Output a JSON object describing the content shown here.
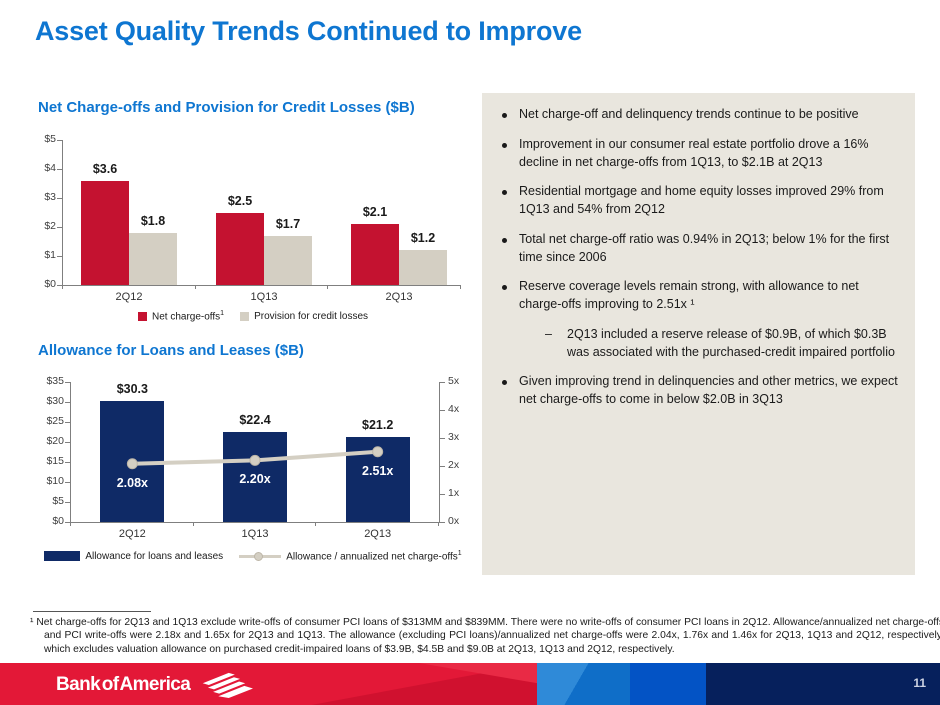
{
  "slide": {
    "title": "Asset Quality Trends Continued to Improve",
    "page_number": "11",
    "logo_text": "Bank of America"
  },
  "colors": {
    "accent_blue": "#0e76d1",
    "bar_red": "#c41230",
    "bar_tan": "#d4cfc3",
    "bar_navy": "#0f2a66",
    "line_tan": "#d4cfc3",
    "panel_beige": "#e9e6de",
    "footer_red": "#e31837",
    "footer_blue_mid": "#1478d2",
    "footer_blue_bright": "#0353c5",
    "footer_navy": "#06205c"
  },
  "chart_data": [
    {
      "type": "bar",
      "title": "Net Charge-offs and Provision for Credit Losses ($B)",
      "categories": [
        "2Q12",
        "1Q13",
        "2Q13"
      ],
      "series": [
        {
          "name": "Net charge-offs",
          "legend_sup": "1",
          "color": "#c41230",
          "values": [
            3.6,
            2.5,
            2.1
          ],
          "labels": [
            "$3.6",
            "$2.5",
            "$2.1"
          ]
        },
        {
          "name": "Provision for credit losses",
          "legend_sup": "",
          "color": "#d4cfc3",
          "values": [
            1.8,
            1.7,
            1.2
          ],
          "labels": [
            "$1.8",
            "$1.7",
            "$1.2"
          ]
        }
      ],
      "ylim": [
        0,
        5
      ],
      "ytick_labels": [
        "$0",
        "$1",
        "$2",
        "$3",
        "$4",
        "$5"
      ],
      "grid": false,
      "legend_position": "bottom"
    },
    {
      "type": "bar+line",
      "title": "Allowance for Loans and Leases ($B)",
      "categories": [
        "2Q12",
        "1Q13",
        "2Q13"
      ],
      "bar_series": {
        "name": "Allowance for loans and leases",
        "color": "#0f2a66",
        "values": [
          30.3,
          22.4,
          21.2
        ],
        "labels": [
          "$30.3",
          "$22.4",
          "$21.2"
        ]
      },
      "line_series": {
        "name": "Allowance / annualized net charge-offs",
        "legend_sup": "1",
        "color": "#d4cfc3",
        "values": [
          2.08,
          2.2,
          2.51
        ],
        "labels": [
          "2.08x",
          "2.20x",
          "2.51x"
        ]
      },
      "ylim_left": [
        0,
        35
      ],
      "left_tick_labels": [
        "$0",
        "$5",
        "$10",
        "$15",
        "$20",
        "$25",
        "$30",
        "$35"
      ],
      "ylim_right": [
        0,
        5
      ],
      "right_tick_labels": [
        "0x",
        "1x",
        "2x",
        "3x",
        "4x",
        "5x"
      ],
      "grid": false,
      "legend_position": "bottom"
    }
  ],
  "commentary": {
    "sub_marker": "–",
    "bullets": [
      {
        "text": "Net charge-off and delinquency trends continue to be positive"
      },
      {
        "text": "Improvement in our consumer real estate portfolio drove a 16% decline in net charge-offs from 1Q13, to $2.1B at 2Q13"
      },
      {
        "text": "Residential mortgage and home equity losses improved 29% from 1Q13 and 54% from 2Q12"
      },
      {
        "text": "Total net charge-off ratio was 0.94% in 2Q13; below 1% for the first time since 2006"
      },
      {
        "text": "Reserve coverage levels remain strong, with allowance to net charge-offs improving to 2.51x ¹",
        "sub": [
          "2Q13 included a reserve release of $0.9B, of which $0.3B was associated with the purchased-credit impaired portfolio"
        ]
      },
      {
        "text": "Given improving trend in delinquencies and other metrics, we expect net charge-offs to come in below $2.0B in 3Q13"
      }
    ]
  },
  "footnote": {
    "text": "¹ Net charge-offs for 2Q13 and 1Q13 exclude write-offs of consumer PCI loans of $313MM and $839MM. There were no write-offs of consumer PCI loans in 2Q12. Allowance/annualized net charge-offs and PCI write-offs were 2.18x and 1.65x for 2Q13 and 1Q13. The allowance (excluding PCI loans)/annualized net charge-offs were 2.04x, 1.76x and 1.46x for 2Q13, 1Q13 and 2Q12, respectively, which excludes valuation allowance on purchased credit-impaired loans of $3.9B, $4.5B and $9.0B at 2Q13, 1Q13 and 2Q12, respectively."
  }
}
